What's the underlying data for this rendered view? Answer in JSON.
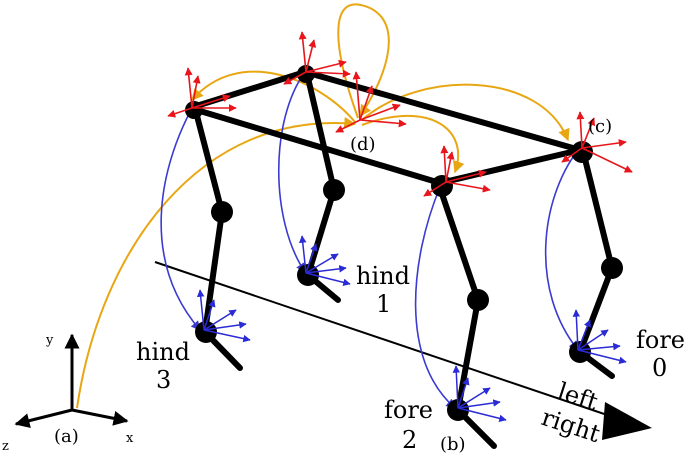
{
  "figure": {
    "labels": {
      "world_origin": "(a)",
      "fore2_foot": "(b)",
      "fore0_hip": "(c)",
      "body_center": "(d)"
    },
    "axes": {
      "x": "x",
      "y": "y",
      "z": "z"
    },
    "legs": [
      {
        "line1": "fore",
        "line2": "0"
      },
      {
        "line1": "hind",
        "line2": "1"
      },
      {
        "line1": "fore",
        "line2": "2"
      },
      {
        "line1": "hind",
        "line2": "3"
      }
    ],
    "sides": {
      "left": "left",
      "right": "right"
    },
    "colors": {
      "body": "#000000",
      "frame_arrow": "#e8161b",
      "foot_arrow": "#2b2bd6",
      "blue_curve": "#3b3bcf",
      "yellow_curve": "#e8a712"
    }
  }
}
